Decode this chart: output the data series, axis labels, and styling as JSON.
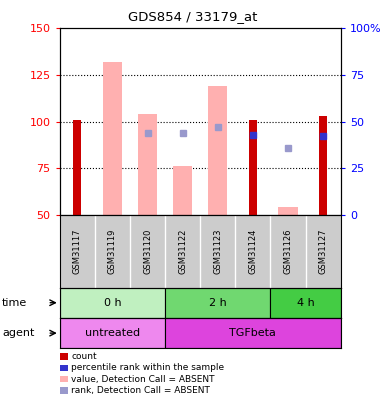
{
  "title": "GDS854 / 33179_at",
  "samples": [
    "GSM31117",
    "GSM31119",
    "GSM31120",
    "GSM31122",
    "GSM31123",
    "GSM31124",
    "GSM31126",
    "GSM31127"
  ],
  "ylim_left": [
    50,
    150
  ],
  "ylim_right": [
    0,
    100
  ],
  "yticks_left": [
    50,
    75,
    100,
    125,
    150
  ],
  "ytick_labels_left": [
    "50",
    "75",
    "100",
    "125",
    "150"
  ],
  "yticks_right": [
    0,
    25,
    50,
    75,
    100
  ],
  "ytick_labels_right": [
    "0",
    "25",
    "50",
    "75",
    "100%"
  ],
  "red_bars": {
    "GSM31117": [
      50,
      101
    ],
    "GSM31119": [
      50,
      50
    ],
    "GSM31120": [
      50,
      50
    ],
    "GSM31122": [
      50,
      50
    ],
    "GSM31123": [
      50,
      50
    ],
    "GSM31124": [
      50,
      101
    ],
    "GSM31126": [
      50,
      50
    ],
    "GSM31127": [
      50,
      103
    ]
  },
  "pink_bars": {
    "GSM31117": null,
    "GSM31119": [
      50,
      132
    ],
    "GSM31120": [
      50,
      104
    ],
    "GSM31122": [
      50,
      76
    ],
    "GSM31123": [
      50,
      119
    ],
    "GSM31124": null,
    "GSM31126": [
      50,
      54
    ],
    "GSM31127": null
  },
  "blue_squares": {
    "GSM31117": null,
    "GSM31119": null,
    "GSM31120": 94,
    "GSM31122": 94,
    "GSM31123": 97,
    "GSM31124": 93,
    "GSM31126": 86,
    "GSM31127": 92
  },
  "blue_squares_absent": {
    "GSM31117": null,
    "GSM31119": null,
    "GSM31120": true,
    "GSM31122": true,
    "GSM31123": true,
    "GSM31124": false,
    "GSM31126": true,
    "GSM31127": false
  },
  "time_groups": [
    {
      "label": "0 h",
      "samples": [
        "GSM31117",
        "GSM31119",
        "GSM31120"
      ],
      "color": "#c0f0c0"
    },
    {
      "label": "2 h",
      "samples": [
        "GSM31122",
        "GSM31123",
        "GSM31124"
      ],
      "color": "#70d870"
    },
    {
      "label": "4 h",
      "samples": [
        "GSM31126",
        "GSM31127"
      ],
      "color": "#44cc44"
    }
  ],
  "agent_groups": [
    {
      "label": "untreated",
      "samples": [
        "GSM31117",
        "GSM31119",
        "GSM31120"
      ],
      "color": "#ee88ee"
    },
    {
      "label": "TGFbeta",
      "samples": [
        "GSM31122",
        "GSM31123",
        "GSM31124",
        "GSM31126",
        "GSM31127"
      ],
      "color": "#dd44dd"
    }
  ],
  "red_color": "#cc0000",
  "pink_color": "#ffb0b0",
  "blue_color": "#3333cc",
  "light_blue_color": "#9999cc",
  "legend_items": [
    {
      "color": "#cc0000",
      "label": "count"
    },
    {
      "color": "#3333cc",
      "label": "percentile rank within the sample"
    },
    {
      "color": "#ffb0b0",
      "label": "value, Detection Call = ABSENT"
    },
    {
      "color": "#9999cc",
      "label": "rank, Detection Call = ABSENT"
    }
  ]
}
